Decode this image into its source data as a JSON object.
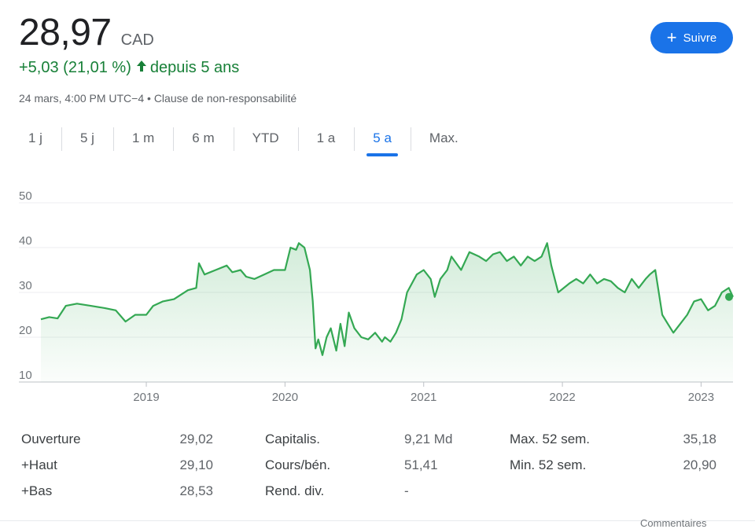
{
  "quote": {
    "price": "28,97",
    "currency": "CAD",
    "change": "+5,03 (21,01 %)",
    "change_period": "depuis 5 ans",
    "timestamp": "24 mars, 4:00 PM UTC−4",
    "separator": "•",
    "disclaimer": "Clause de non-responsabilité"
  },
  "follow_button": {
    "label": "Suivre"
  },
  "tabs": [
    {
      "label": "1 j"
    },
    {
      "label": "5 j"
    },
    {
      "label": "1 m"
    },
    {
      "label": "6 m"
    },
    {
      "label": "YTD"
    },
    {
      "label": "1 a"
    },
    {
      "label": "5 a",
      "active": true
    },
    {
      "label": "Max."
    }
  ],
  "colors": {
    "up": "#188038",
    "line": "#34a853",
    "accent": "#1a73e8"
  },
  "chart_data": {
    "type": "area",
    "x_ticks": [
      "2019",
      "2020",
      "2021",
      "2022",
      "2023"
    ],
    "y_ticks": [
      10,
      20,
      30,
      40,
      50
    ],
    "ylim": [
      10,
      50
    ],
    "xlim": [
      2018.24,
      2023.23
    ],
    "grid": true,
    "x": [
      2018.24,
      2018.3,
      2018.36,
      2018.42,
      2018.5,
      2018.6,
      2018.7,
      2018.78,
      2018.85,
      2018.92,
      2019.0,
      2019.05,
      2019.12,
      2019.2,
      2019.3,
      2019.36,
      2019.38,
      2019.42,
      2019.5,
      2019.58,
      2019.62,
      2019.68,
      2019.72,
      2019.78,
      2019.85,
      2019.92,
      2020.0,
      2020.04,
      2020.08,
      2020.1,
      2020.14,
      2020.18,
      2020.2,
      2020.22,
      2020.24,
      2020.27,
      2020.3,
      2020.33,
      2020.37,
      2020.4,
      2020.43,
      2020.46,
      2020.5,
      2020.55,
      2020.6,
      2020.65,
      2020.7,
      2020.72,
      2020.76,
      2020.8,
      2020.84,
      2020.88,
      2020.95,
      2021.0,
      2021.05,
      2021.08,
      2021.12,
      2021.17,
      2021.2,
      2021.27,
      2021.33,
      2021.4,
      2021.45,
      2021.5,
      2021.55,
      2021.6,
      2021.65,
      2021.7,
      2021.75,
      2021.8,
      2021.85,
      2021.89,
      2021.92,
      2021.97,
      2022.05,
      2022.1,
      2022.15,
      2022.2,
      2022.25,
      2022.3,
      2022.35,
      2022.4,
      2022.45,
      2022.5,
      2022.55,
      2022.6,
      2022.63,
      2022.67,
      2022.72,
      2022.76,
      2022.8,
      2022.85,
      2022.9,
      2022.95,
      2023.0,
      2023.05,
      2023.1,
      2023.15,
      2023.2,
      2023.23
    ],
    "y": [
      24,
      24.5,
      24.2,
      27,
      27.5,
      27,
      26.5,
      26,
      23.5,
      25,
      25,
      27,
      28,
      28.5,
      30.5,
      31,
      36.5,
      34,
      35,
      36,
      34.5,
      35,
      33.5,
      33,
      34,
      35,
      35,
      40,
      39.5,
      41,
      40,
      35,
      28,
      17.5,
      19.5,
      16,
      20,
      22,
      17,
      23,
      18,
      25.5,
      22,
      20,
      19.5,
      21,
      19,
      20,
      19,
      21,
      24,
      30,
      34,
      35,
      33,
      29,
      33,
      35,
      38,
      35,
      39,
      38,
      37,
      38.5,
      39,
      37,
      38,
      36,
      38,
      37,
      38,
      41,
      36,
      30,
      32,
      33,
      32,
      34,
      32,
      33,
      32.5,
      31,
      30,
      33,
      31,
      33,
      34,
      35,
      25,
      23,
      21,
      23,
      25,
      28,
      28.5,
      26,
      27,
      30,
      31,
      29
    ]
  },
  "stats": [
    {
      "label": "Ouverture",
      "value": "29,02"
    },
    {
      "label": "+Haut",
      "value": "29,10"
    },
    {
      "label": "+Bas",
      "value": "28,53"
    },
    {
      "label": "Capitalis.",
      "value": "9,21 Md"
    },
    {
      "label": "Cours/bén.",
      "value": "51,41"
    },
    {
      "label": "Rend. div.",
      "value": "-"
    },
    {
      "label": "Max. 52 sem.",
      "value": "35,18"
    },
    {
      "label": "Min. 52 sem.",
      "value": "20,90"
    }
  ],
  "footer": {
    "link": "Commentaires"
  }
}
